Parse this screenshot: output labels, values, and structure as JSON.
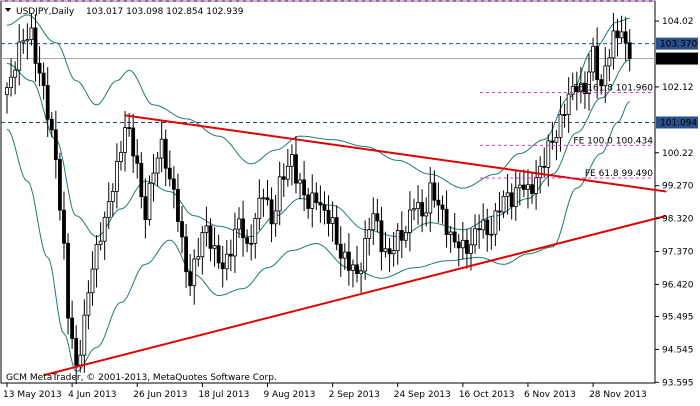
{
  "chart_data": {
    "type": "candlestick",
    "header": {
      "symbol_label": "USDJPY,Daily",
      "ohlc_text": "103.017 103.098 102.854 102.939"
    },
    "footer_text": "GCM MetaTrader, © 2001-2013, MetaQuotes Software Corp.",
    "x_axis": {
      "tick_labels": [
        "13 May 2013",
        "4 Jun 2013",
        "26 Jun 2013",
        "18 Jul 2013",
        "9 Aug 2013",
        "2 Sep 2013",
        "24 Sep 2013",
        "16 Oct 2013",
        "6 Nov 2013",
        "28 Nov 2013"
      ],
      "tick_indexes": [
        0,
        16,
        32,
        48,
        64,
        80,
        96,
        112,
        128,
        144
      ]
    },
    "y_axis": {
      "range": [
        93.575,
        104.6
      ],
      "tick_labels": [
        "104.02",
        "102.12",
        "100.22",
        "99.270",
        "98.320",
        "97.370",
        "96.420",
        "95.495",
        "94.545",
        "93.595"
      ],
      "tick_values": [
        104.02,
        102.12,
        100.22,
        99.27,
        98.32,
        97.37,
        96.42,
        95.495,
        94.545,
        93.595
      ],
      "boxed_labels": [
        {
          "text": "103.370",
          "value": 103.37,
          "style": "blue"
        },
        {
          "text": "102.939",
          "value": 102.939,
          "style": "black"
        },
        {
          "text": "101.094",
          "value": 101.094,
          "style": "blue"
        }
      ]
    },
    "horizontal_lines": [
      {
        "value": 104.6,
        "style": "dashed",
        "color": "#cc44cc"
      },
      {
        "value": 103.37,
        "style": "dashed",
        "color": "#2a4a8a"
      },
      {
        "value": 102.939,
        "style": "solid",
        "color": "#a8a8a8"
      },
      {
        "value": 101.094,
        "style": "dashed",
        "color": "#2a4a8a"
      }
    ],
    "fibonacci_expansion": [
      {
        "text": "FE 161.8 101.960",
        "value": 101.96
      },
      {
        "text": "FE 100.0 100.434",
        "value": 100.434
      },
      {
        "text": "FE 61.8 99.490",
        "value": 99.49
      }
    ],
    "trend_lines": [
      {
        "name": "upper-trendline",
        "start": {
          "index": 29,
          "value": 101.3
        },
        "end": {
          "index": 162,
          "value": 99.1
        },
        "color": "#e00000"
      },
      {
        "name": "lower-trendline",
        "start": {
          "index": 9,
          "value": 93.8
        },
        "end": {
          "index": 162,
          "value": 98.4
        },
        "color": "#e00000"
      }
    ],
    "anchors": [
      {
        "index": 0,
        "value": 102.1
      },
      {
        "index": 3,
        "value": 103.2
      },
      {
        "index": 6,
        "value": 103.7
      },
      {
        "index": 8,
        "value": 102.5
      },
      {
        "index": 10,
        "value": 101.3
      },
      {
        "index": 12,
        "value": 100.2
      },
      {
        "index": 14,
        "value": 97.3
      },
      {
        "index": 15,
        "value": 95.5
      },
      {
        "index": 17,
        "value": 94.1
      },
      {
        "index": 19,
        "value": 95.3
      },
      {
        "index": 21,
        "value": 96.9
      },
      {
        "index": 23,
        "value": 98.0
      },
      {
        "index": 25,
        "value": 98.6
      },
      {
        "index": 27,
        "value": 99.8
      },
      {
        "index": 29,
        "value": 101.1
      },
      {
        "index": 31,
        "value": 100.2
      },
      {
        "index": 34,
        "value": 98.6
      },
      {
        "index": 36,
        "value": 99.6
      },
      {
        "index": 38,
        "value": 100.5
      },
      {
        "index": 41,
        "value": 99.0
      },
      {
        "index": 43,
        "value": 97.6
      },
      {
        "index": 45,
        "value": 96.5
      },
      {
        "index": 47,
        "value": 97.3
      },
      {
        "index": 49,
        "value": 98.2
      },
      {
        "index": 51,
        "value": 97.3
      },
      {
        "index": 53,
        "value": 96.8
      },
      {
        "index": 55,
        "value": 97.6
      },
      {
        "index": 57,
        "value": 98.2
      },
      {
        "index": 59,
        "value": 97.4
      },
      {
        "index": 61,
        "value": 98.4
      },
      {
        "index": 63,
        "value": 99.0
      },
      {
        "index": 65,
        "value": 98.3
      },
      {
        "index": 67,
        "value": 99.3
      },
      {
        "index": 69,
        "value": 99.7
      },
      {
        "index": 70,
        "value": 100.1
      },
      {
        "index": 72,
        "value": 99.3
      },
      {
        "index": 74,
        "value": 98.6
      },
      {
        "index": 76,
        "value": 99.1
      },
      {
        "index": 78,
        "value": 98.4
      },
      {
        "index": 80,
        "value": 98.1
      },
      {
        "index": 82,
        "value": 97.4
      },
      {
        "index": 84,
        "value": 96.9
      },
      {
        "index": 86,
        "value": 96.7
      },
      {
        "index": 88,
        "value": 97.6
      },
      {
        "index": 90,
        "value": 98.4
      },
      {
        "index": 92,
        "value": 97.7
      },
      {
        "index": 94,
        "value": 97.2
      },
      {
        "index": 96,
        "value": 97.7
      },
      {
        "index": 98,
        "value": 98.1
      },
      {
        "index": 100,
        "value": 98.7
      },
      {
        "index": 102,
        "value": 98.4
      },
      {
        "index": 104,
        "value": 99.2
      },
      {
        "index": 106,
        "value": 98.6
      },
      {
        "index": 108,
        "value": 98.2
      },
      {
        "index": 110,
        "value": 97.6
      },
      {
        "index": 112,
        "value": 97.4
      },
      {
        "index": 114,
        "value": 97.7
      },
      {
        "index": 116,
        "value": 98.1
      },
      {
        "index": 118,
        "value": 97.9
      },
      {
        "index": 120,
        "value": 98.4
      },
      {
        "index": 122,
        "value": 98.8
      },
      {
        "index": 124,
        "value": 99.0
      },
      {
        "index": 126,
        "value": 99.3
      },
      {
        "index": 128,
        "value": 99.0
      },
      {
        "index": 130,
        "value": 99.6
      },
      {
        "index": 132,
        "value": 99.9
      },
      {
        "index": 134,
        "value": 100.6
      },
      {
        "index": 136,
        "value": 101.2
      },
      {
        "index": 138,
        "value": 101.7
      },
      {
        "index": 140,
        "value": 102.3
      },
      {
        "index": 142,
        "value": 102.0
      },
      {
        "index": 144,
        "value": 103.0
      },
      {
        "index": 146,
        "value": 102.2
      },
      {
        "index": 147,
        "value": 102.7
      },
      {
        "index": 149,
        "value": 103.4
      },
      {
        "index": 151,
        "value": 103.9
      },
      {
        "index": 152,
        "value": 103.3
      },
      {
        "index": 153,
        "value": 102.94
      }
    ],
    "bollinger_bands": {
      "upper": [
        {
          "index": 0,
          "value": 103.9
        },
        {
          "index": 5,
          "value": 104.2
        },
        {
          "index": 12,
          "value": 103.4
        },
        {
          "index": 17,
          "value": 102.3
        },
        {
          "index": 22,
          "value": 101.6
        },
        {
          "index": 27,
          "value": 102.3
        },
        {
          "index": 30,
          "value": 102.6
        },
        {
          "index": 36,
          "value": 101.6
        },
        {
          "index": 44,
          "value": 101.2
        },
        {
          "index": 52,
          "value": 100.7
        },
        {
          "index": 60,
          "value": 99.9
        },
        {
          "index": 66,
          "value": 100.3
        },
        {
          "index": 72,
          "value": 100.7
        },
        {
          "index": 80,
          "value": 100.6
        },
        {
          "index": 88,
          "value": 100.4
        },
        {
          "index": 96,
          "value": 100.0
        },
        {
          "index": 104,
          "value": 99.6
        },
        {
          "index": 112,
          "value": 99.2
        },
        {
          "index": 120,
          "value": 99.6
        },
        {
          "index": 126,
          "value": 100.2
        },
        {
          "index": 132,
          "value": 100.6
        },
        {
          "index": 138,
          "value": 101.8
        },
        {
          "index": 144,
          "value": 103.2
        },
        {
          "index": 150,
          "value": 104.0
        },
        {
          "index": 153,
          "value": 104.1
        }
      ],
      "lower": [
        {
          "index": 0,
          "value": 100.9
        },
        {
          "index": 5,
          "value": 99.4
        },
        {
          "index": 10,
          "value": 97.2
        },
        {
          "index": 14,
          "value": 95.0
        },
        {
          "index": 17,
          "value": 93.9
        },
        {
          "index": 22,
          "value": 94.6
        },
        {
          "index": 28,
          "value": 95.9
        },
        {
          "index": 34,
          "value": 97.0
        },
        {
          "index": 40,
          "value": 97.7
        },
        {
          "index": 46,
          "value": 96.7
        },
        {
          "index": 52,
          "value": 96.1
        },
        {
          "index": 58,
          "value": 96.3
        },
        {
          "index": 64,
          "value": 96.9
        },
        {
          "index": 70,
          "value": 97.4
        },
        {
          "index": 76,
          "value": 97.6
        },
        {
          "index": 84,
          "value": 96.9
        },
        {
          "index": 92,
          "value": 96.6
        },
        {
          "index": 100,
          "value": 96.9
        },
        {
          "index": 108,
          "value": 97.1
        },
        {
          "index": 116,
          "value": 97.2
        },
        {
          "index": 122,
          "value": 97.0
        },
        {
          "index": 128,
          "value": 97.3
        },
        {
          "index": 134,
          "value": 97.5
        },
        {
          "index": 140,
          "value": 99.2
        },
        {
          "index": 146,
          "value": 100.2
        },
        {
          "index": 150,
          "value": 101.1
        },
        {
          "index": 153,
          "value": 101.7
        }
      ],
      "middle": [
        {
          "index": 0,
          "value": 102.8
        },
        {
          "index": 6,
          "value": 102.3
        },
        {
          "index": 12,
          "value": 100.6
        },
        {
          "index": 17,
          "value": 98.4
        },
        {
          "index": 22,
          "value": 97.8
        },
        {
          "index": 28,
          "value": 98.6
        },
        {
          "index": 34,
          "value": 99.4
        },
        {
          "index": 40,
          "value": 99.1
        },
        {
          "index": 46,
          "value": 98.4
        },
        {
          "index": 52,
          "value": 98.1
        },
        {
          "index": 60,
          "value": 97.8
        },
        {
          "index": 66,
          "value": 98.4
        },
        {
          "index": 72,
          "value": 98.9
        },
        {
          "index": 80,
          "value": 98.7
        },
        {
          "index": 88,
          "value": 98.0
        },
        {
          "index": 96,
          "value": 97.8
        },
        {
          "index": 104,
          "value": 98.2
        },
        {
          "index": 112,
          "value": 98.0
        },
        {
          "index": 120,
          "value": 98.4
        },
        {
          "index": 128,
          "value": 98.9
        },
        {
          "index": 134,
          "value": 99.6
        },
        {
          "index": 140,
          "value": 100.8
        },
        {
          "index": 146,
          "value": 101.8
        },
        {
          "index": 153,
          "value": 102.9
        }
      ]
    }
  }
}
